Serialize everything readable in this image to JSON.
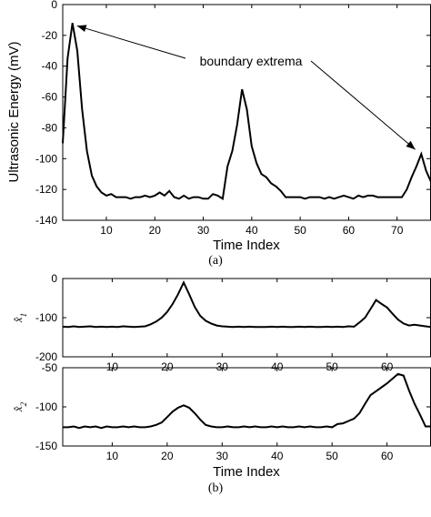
{
  "chart_data": [
    {
      "type": "line",
      "panel": "a",
      "caption": "(a)",
      "xlabel": "Time Index",
      "ylabel": "Ultrasonic Energy (mV)",
      "xlim": [
        1,
        77
      ],
      "ylim": [
        -140,
        0
      ],
      "xticks": [
        10,
        20,
        30,
        40,
        50,
        60,
        70
      ],
      "yticks": [
        -140,
        -120,
        -100,
        -80,
        -60,
        -40,
        -20,
        0
      ],
      "annotation": "boundary extrema",
      "annotation_targets": [
        [
          3,
          -12
        ],
        [
          74.5,
          -100
        ]
      ],
      "series": [
        {
          "x": [
            1,
            2,
            3,
            4,
            5,
            6,
            7,
            8,
            9,
            10,
            11,
            12,
            13,
            14,
            15,
            16,
            17,
            18,
            19,
            20,
            21,
            22,
            23,
            24,
            25,
            26,
            27,
            28,
            29,
            30,
            31,
            32,
            33,
            34,
            35,
            36,
            37,
            38,
            39,
            40,
            41,
            42,
            43,
            44,
            45,
            46,
            47,
            48,
            49,
            50,
            51,
            52,
            53,
            54,
            55,
            56,
            57,
            58,
            59,
            60,
            61,
            62,
            63,
            64,
            65,
            66,
            67,
            68,
            69,
            70,
            71,
            72,
            73,
            74,
            75,
            76,
            77
          ],
          "values": [
            -90,
            -35,
            -12,
            -30,
            -68,
            -95,
            -111,
            -118,
            -122,
            -124,
            -123,
            -125,
            -125,
            -125,
            -126,
            -125,
            -125,
            -124,
            -125,
            -124,
            -122,
            -124,
            -121,
            -125,
            -126,
            -124,
            -126,
            -125,
            -125,
            -126,
            -126,
            -123,
            -124,
            -126,
            -105,
            -95,
            -78,
            -55,
            -68,
            -92,
            -103,
            -110,
            -112,
            -116,
            -118,
            -121,
            -125,
            -125,
            -125,
            -125,
            -126,
            -125,
            -125,
            -125,
            -126,
            -125,
            -126,
            -125,
            -124,
            -125,
            -126,
            -124,
            -125,
            -124,
            -124,
            -125,
            -125,
            -125,
            -125,
            -125,
            -125,
            -120,
            -112,
            -105,
            -97,
            -108,
            -115
          ]
        }
      ]
    },
    {
      "type": "line",
      "panel": "b-top",
      "ylabel_symbol": "x̂",
      "ylabel_sub": "1",
      "xlim": [
        1,
        68
      ],
      "ylim": [
        -200,
        0
      ],
      "xticks": [
        10,
        20,
        30,
        40,
        50,
        60
      ],
      "yticks": [
        -200,
        -100,
        0
      ],
      "series": [
        {
          "x": [
            1,
            2,
            3,
            4,
            5,
            6,
            7,
            8,
            9,
            10,
            11,
            12,
            13,
            14,
            15,
            16,
            17,
            18,
            19,
            20,
            21,
            22,
            23,
            24,
            25,
            26,
            27,
            28,
            29,
            30,
            31,
            32,
            33,
            34,
            35,
            36,
            37,
            38,
            39,
            40,
            41,
            42,
            43,
            44,
            45,
            46,
            47,
            48,
            49,
            50,
            51,
            52,
            53,
            54,
            55,
            56,
            57,
            58,
            59,
            60,
            61,
            62,
            63,
            64,
            65,
            66,
            67,
            68
          ],
          "values": [
            -123,
            -124,
            -122,
            -124,
            -123,
            -122,
            -124,
            -123,
            -124,
            -123,
            -124,
            -122,
            -123,
            -124,
            -123,
            -122,
            -117,
            -110,
            -100,
            -85,
            -65,
            -40,
            -10,
            -40,
            -72,
            -95,
            -108,
            -115,
            -120,
            -122,
            -123,
            -124,
            -123,
            -124,
            -123,
            -124,
            -124,
            -124,
            -123,
            -124,
            -123,
            -124,
            -124,
            -123,
            -124,
            -123,
            -124,
            -124,
            -123,
            -124,
            -123,
            -124,
            -122,
            -123,
            -112,
            -100,
            -78,
            -55,
            -65,
            -74,
            -90,
            -105,
            -115,
            -120,
            -118,
            -120,
            -122,
            -124
          ]
        }
      ]
    },
    {
      "type": "line",
      "panel": "b-bottom",
      "caption": "(b)",
      "xlabel": "Time Index",
      "ylabel_symbol": "x̂",
      "ylabel_sub": "2",
      "xlim": [
        1,
        68
      ],
      "ylim": [
        -150,
        -50
      ],
      "xticks": [
        10,
        20,
        30,
        40,
        50,
        60
      ],
      "yticks": [
        -150,
        -100,
        -50
      ],
      "series": [
        {
          "x": [
            1,
            2,
            3,
            4,
            5,
            6,
            7,
            8,
            9,
            10,
            11,
            12,
            13,
            14,
            15,
            16,
            17,
            18,
            19,
            20,
            21,
            22,
            23,
            24,
            25,
            26,
            27,
            28,
            29,
            30,
            31,
            32,
            33,
            34,
            35,
            36,
            37,
            38,
            39,
            40,
            41,
            42,
            43,
            44,
            45,
            46,
            47,
            48,
            49,
            50,
            51,
            52,
            53,
            54,
            55,
            56,
            57,
            58,
            59,
            60,
            61,
            62,
            63,
            64,
            65,
            66,
            67,
            68
          ],
          "values": [
            -126,
            -126,
            -125,
            -127,
            -125,
            -126,
            -125,
            -127,
            -125,
            -126,
            -126,
            -125,
            -126,
            -125,
            -126,
            -126,
            -125,
            -123,
            -120,
            -113,
            -106,
            -101,
            -98,
            -101,
            -108,
            -116,
            -123,
            -125,
            -126,
            -126,
            -125,
            -126,
            -126,
            -125,
            -126,
            -125,
            -126,
            -126,
            -125,
            -126,
            -125,
            -126,
            -126,
            -125,
            -126,
            -125,
            -126,
            -126,
            -125,
            -126,
            -122,
            -121,
            -118,
            -115,
            -108,
            -96,
            -85,
            -80,
            -75,
            -70,
            -64,
            -58,
            -60,
            -79,
            -96,
            -110,
            -125,
            -125
          ]
        }
      ]
    }
  ]
}
